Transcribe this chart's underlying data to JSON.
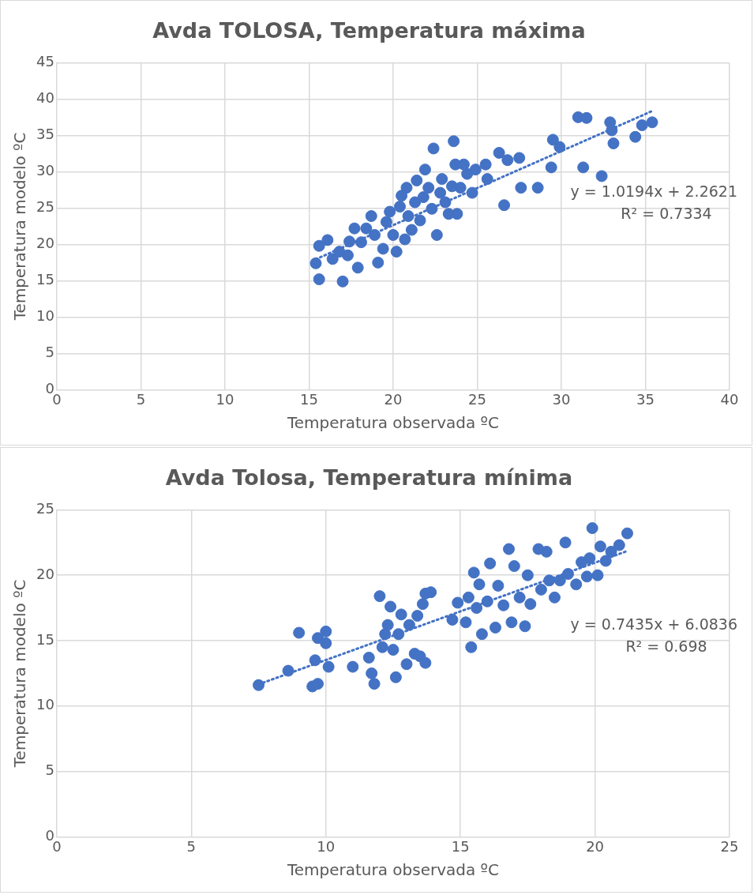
{
  "chart_data": [
    {
      "type": "scatter",
      "title": "Avda TOLOSA, Temperatura máxima",
      "xlabel": "Temperatura observada ºC",
      "ylabel": "Temperatura modelo ºC",
      "xlim": [
        0,
        40
      ],
      "ylim": [
        0,
        45
      ],
      "xticks": [
        0,
        5,
        10,
        15,
        20,
        25,
        30,
        35,
        40
      ],
      "yticks": [
        0,
        5,
        10,
        15,
        20,
        25,
        30,
        35,
        40,
        45
      ],
      "grid": true,
      "marker": "circle",
      "legend": false,
      "annotations": [
        "y = 1.0194x + 2.2621",
        "R² = 0.7334"
      ],
      "series": [
        {
          "color": "#4472c4",
          "x": [
            15.4,
            15.6,
            15.6,
            16.1,
            16.4,
            16.8,
            17.0,
            17.3,
            17.4,
            17.7,
            17.9,
            18.1,
            18.4,
            18.7,
            18.9,
            19.1,
            19.4,
            19.6,
            19.8,
            20.0,
            20.2,
            20.4,
            20.5,
            20.7,
            20.8,
            20.9,
            21.1,
            21.3,
            21.4,
            21.6,
            21.8,
            21.9,
            22.1,
            22.3,
            22.4,
            22.6,
            22.8,
            22.9,
            23.1,
            23.3,
            23.5,
            23.6,
            23.7,
            23.8,
            24.0,
            24.2,
            24.4,
            24.7,
            24.9,
            25.5,
            25.6,
            26.3,
            26.6,
            26.8,
            27.5,
            27.6,
            28.6,
            29.4,
            29.5,
            29.9,
            31.0,
            31.3,
            31.5,
            32.4,
            32.9,
            33.0,
            33.1,
            34.4,
            34.8,
            35.4
          ],
          "values": [
            17.4,
            15.2,
            19.8,
            20.6,
            18.0,
            19.0,
            14.9,
            18.5,
            20.4,
            22.2,
            16.8,
            20.3,
            22.2,
            23.9,
            21.3,
            17.5,
            19.4,
            23.1,
            24.5,
            21.3,
            19.0,
            25.2,
            26.7,
            20.7,
            27.8,
            23.9,
            22.0,
            25.8,
            28.8,
            23.3,
            26.5,
            30.3,
            27.8,
            24.9,
            33.2,
            21.3,
            27.1,
            29.0,
            25.8,
            24.2,
            28.0,
            34.2,
            31.0,
            24.2,
            27.8,
            31.0,
            29.7,
            27.1,
            30.3,
            31.0,
            29.0,
            32.6,
            25.4,
            31.6,
            31.9,
            27.8,
            27.8,
            30.6,
            34.4,
            33.4,
            37.5,
            30.6,
            37.4,
            29.4,
            36.8,
            35.7,
            33.9,
            34.8,
            36.4,
            36.8
          ]
        },
        {
          "type": "line",
          "line_style": "dotted",
          "marker": "none",
          "color": "#4472c4",
          "x": [
            15.4,
            35.4
          ],
          "values": [
            17.96,
            38.35
          ]
        }
      ]
    },
    {
      "type": "scatter",
      "title": "Avda Tolosa, Temperatura mínima",
      "xlabel": "Temperatura observada ºC",
      "ylabel": "Temperatura modelo ºC",
      "xlim": [
        0,
        25
      ],
      "ylim": [
        0,
        25
      ],
      "xticks": [
        0,
        5,
        10,
        15,
        20,
        25
      ],
      "yticks": [
        0,
        5,
        10,
        15,
        20,
        25
      ],
      "grid": true,
      "marker": "circle",
      "legend": false,
      "annotations": [
        "y = 0.7435x + 6.0836",
        "R² = 0.698"
      ],
      "series": [
        {
          "color": "#4472c4",
          "x": [
            7.5,
            8.6,
            9.0,
            9.5,
            9.6,
            9.7,
            9.7,
            10.0,
            10.0,
            10.1,
            11.0,
            11.6,
            11.8,
            11.7,
            12.0,
            12.1,
            12.2,
            12.3,
            12.4,
            12.5,
            12.6,
            12.7,
            12.8,
            13.0,
            13.1,
            13.3,
            13.4,
            13.5,
            13.7,
            13.6,
            13.7,
            13.9,
            14.7,
            14.9,
            15.2,
            15.3,
            15.4,
            15.5,
            15.6,
            15.7,
            15.8,
            16.0,
            16.1,
            16.3,
            16.4,
            16.6,
            16.8,
            16.9,
            17.0,
            17.2,
            17.4,
            17.5,
            17.6,
            17.9,
            18.0,
            18.2,
            18.3,
            18.5,
            18.7,
            18.9,
            19.0,
            19.3,
            19.5,
            19.7,
            19.8,
            19.9,
            20.1,
            20.2,
            20.4,
            20.6,
            20.9,
            21.2
          ],
          "values": [
            11.6,
            12.7,
            15.6,
            11.5,
            13.5,
            15.2,
            11.7,
            15.7,
            14.8,
            13.0,
            13.0,
            13.7,
            11.7,
            12.5,
            18.4,
            14.5,
            15.5,
            16.2,
            17.6,
            14.3,
            12.2,
            15.5,
            17.0,
            13.2,
            16.2,
            14.0,
            16.9,
            13.8,
            13.3,
            17.8,
            18.6,
            18.7,
            16.6,
            17.9,
            16.4,
            18.3,
            14.5,
            20.2,
            17.5,
            19.3,
            15.5,
            18.0,
            20.9,
            16.0,
            19.2,
            17.7,
            22.0,
            16.4,
            20.7,
            18.3,
            16.1,
            20.0,
            17.8,
            22.0,
            18.9,
            21.8,
            19.6,
            18.3,
            19.6,
            22.5,
            20.1,
            19.3,
            21.0,
            19.9,
            21.3,
            23.6,
            20.0,
            22.2,
            21.1,
            21.8,
            22.3,
            23.2
          ]
        },
        {
          "type": "line",
          "line_style": "dotted",
          "marker": "none",
          "color": "#4472c4",
          "x": [
            7.5,
            21.2
          ],
          "values": [
            11.66,
            21.85
          ]
        }
      ]
    }
  ]
}
